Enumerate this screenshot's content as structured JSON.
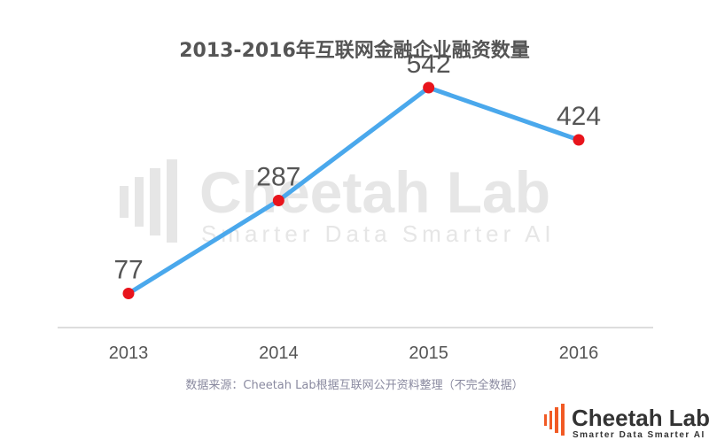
{
  "watermark": {
    "name": "Cheetah Lab",
    "tagline": "Smarter Data Smarter AI"
  },
  "brand": {
    "name": "Cheetah Lab",
    "tagline": "Smarter Data Smarter AI",
    "accent": "#f15a24"
  },
  "source_note": "数据来源：Cheetah Lab根据互联网公开资料整理（不完全数据）",
  "chart_data": {
    "type": "line",
    "title": "2013-2016年互联网金融企业融资数量",
    "categories": [
      "2013",
      "2014",
      "2015",
      "2016"
    ],
    "series": [
      {
        "values": [
          77,
          287,
          542,
          424
        ],
        "color": "#4aa8ec",
        "marker_color": "#e8141c"
      }
    ],
    "data_labels": [
      "77",
      "287",
      "542",
      "424"
    ],
    "xlabel": "",
    "ylabel": "",
    "ylim": [
      0,
      600
    ],
    "grid": false,
    "legend": "none"
  }
}
